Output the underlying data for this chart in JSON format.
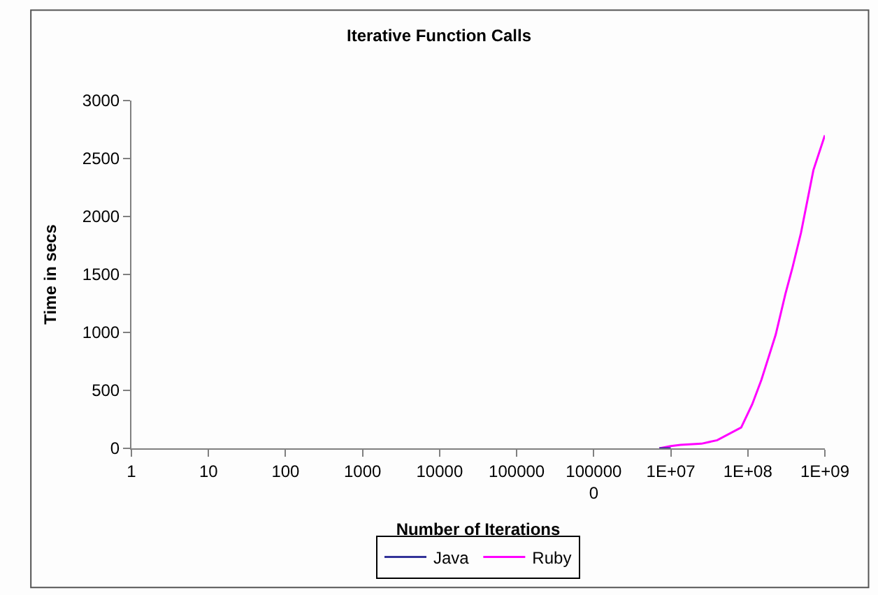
{
  "chart_data": {
    "type": "line",
    "title": "Iterative Function Calls",
    "xlabel": "Number of Iterations",
    "ylabel": "Time in secs",
    "log": "x",
    "xlim": [
      1,
      1000000000
    ],
    "xticks": [
      {
        "value": 1,
        "label": "1"
      },
      {
        "value": 10,
        "label": "10"
      },
      {
        "value": 100,
        "label": "100"
      },
      {
        "value": 1000,
        "label": "1000"
      },
      {
        "value": 10000,
        "label": "10000"
      },
      {
        "value": 100000,
        "label": "100000"
      },
      {
        "value": 1000000,
        "label": "1000000"
      },
      {
        "value": 10000000,
        "label": "1E+07"
      },
      {
        "value": 100000000,
        "label": "1E+08"
      },
      {
        "value": 1000000000,
        "label": "1E+09"
      }
    ],
    "ylim": [
      0,
      3000
    ],
    "yticks": [
      0,
      500,
      1000,
      1500,
      2000,
      2500,
      3000
    ],
    "legend": "bottom",
    "marker": "none",
    "line_style": "solid",
    "series": [
      {
        "name": "Ruby",
        "color": "#ff00ff",
        "x": [
          7100000,
          10000000,
          13400000,
          25000000,
          40000000,
          82000000,
          114000000,
          150000000,
          230000000,
          307000000,
          380000000,
          490000000,
          710000000,
          1000000000
        ],
        "values": [
          0,
          20,
          30,
          40,
          70,
          180,
          380,
          590,
          980,
          1330,
          1560,
          1860,
          2400,
          2700
        ]
      },
      {
        "name": "Java",
        "color": "#333399",
        "x": [
          7100000,
          10000000
        ],
        "values": [
          0,
          0
        ]
      }
    ]
  }
}
